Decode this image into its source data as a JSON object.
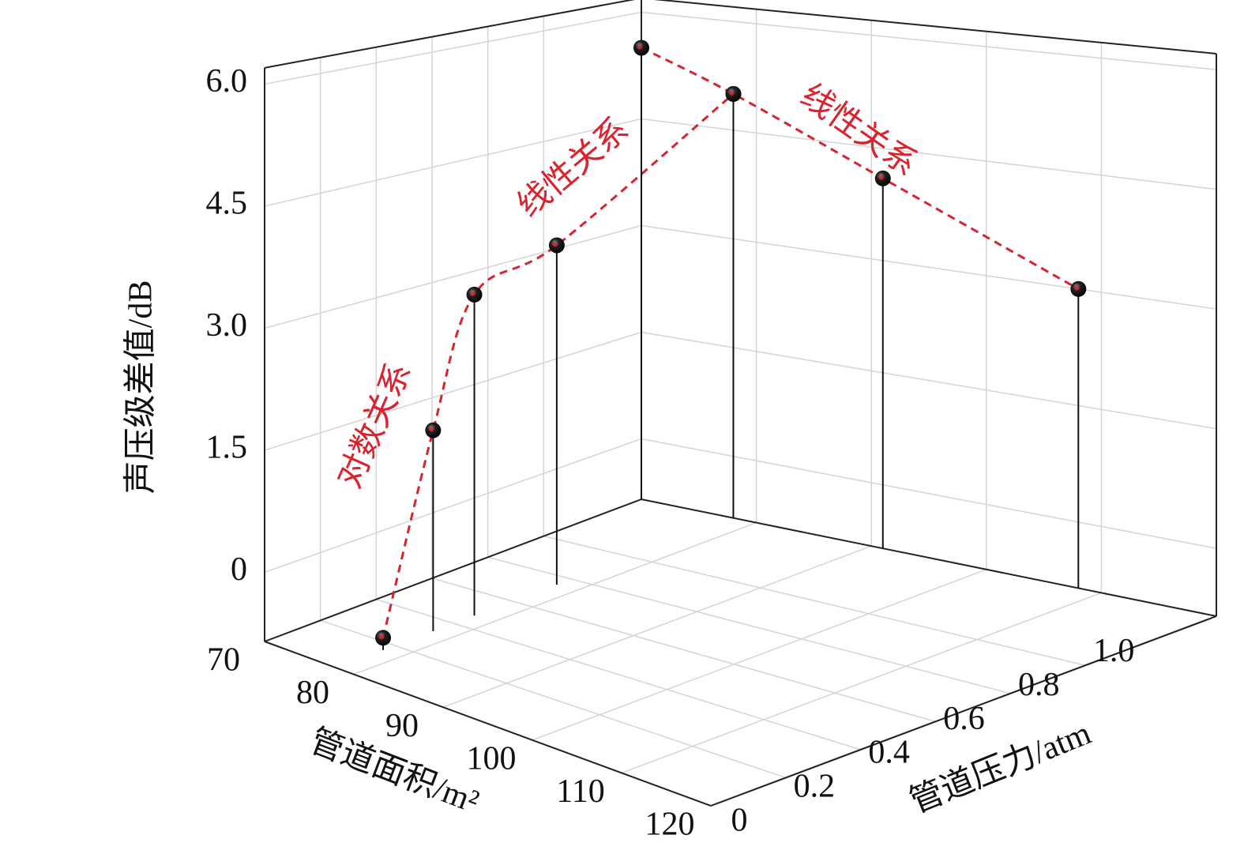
{
  "chart_data": {
    "type": "scatter3d",
    "z_label": "声压级差值/dB",
    "x_label": "管道面积/m²",
    "y_label": "管道压力/atm",
    "xlim": [
      70,
      120
    ],
    "xticks": [
      70,
      80,
      90,
      100,
      110,
      120
    ],
    "ylim": [
      0,
      1.35
    ],
    "yticks": [
      0,
      0.2,
      0.4,
      0.6,
      0.8,
      {
        "value": 1,
        "label": "1.0"
      }
    ],
    "zlim": [
      -0.85,
      6.2
    ],
    "zticks": [
      0,
      1.5,
      {
        "value": 3,
        "label": "3.0"
      },
      4.5,
      {
        "value": 6,
        "label": "6.0"
      }
    ],
    "grid": true,
    "series": [
      {
        "color": "#d9232e",
        "x": [
          78,
          78,
          78,
          78,
          78
        ],
        "y": [
          0.16,
          0.33,
          0.47,
          0.75,
          1.35
        ],
        "values": [
          -0.7,
          1.65,
          3.2,
          3.55,
          5.0
        ]
      },
      {
        "color": "#d9232e",
        "x": [
          70,
          78,
          91,
          108
        ],
        "y": [
          1.35,
          1.35,
          1.35,
          1.35
        ],
        "values": [
          5.5,
          5.0,
          4.1,
          3.0
        ]
      }
    ],
    "annotations": [
      "对数关系",
      "线性关系",
      "线性关系"
    ]
  }
}
